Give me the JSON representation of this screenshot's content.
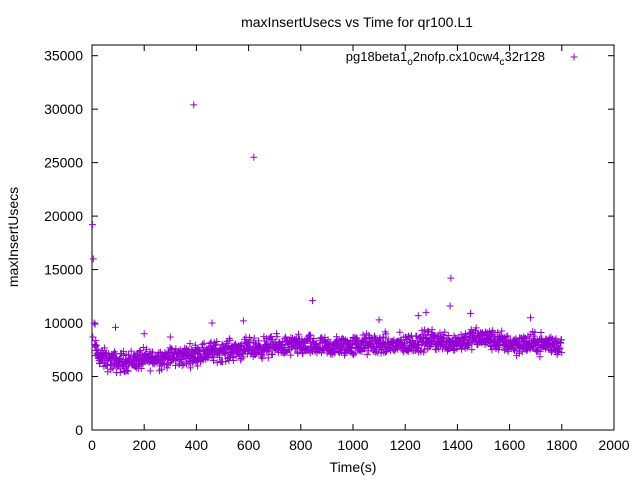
{
  "chart_data": {
    "type": "scatter",
    "title": "maxInsertUsecs vs Time for qr100.L1",
    "xlabel": "Time(s)",
    "ylabel": "maxInsertUsecs",
    "xlim": [
      0,
      2000
    ],
    "ylim": [
      0,
      36000
    ],
    "xticks": [
      0,
      200,
      400,
      600,
      800,
      1000,
      1200,
      1400,
      1600,
      1800,
      2000
    ],
    "yticks": [
      0,
      5000,
      10000,
      15000,
      20000,
      25000,
      30000,
      35000
    ],
    "grid": false,
    "legend_position": "top-right",
    "series": [
      {
        "legend_main": "pg18beta1",
        "legend_sub1": "o",
        "legend_mid": "2nofp.cx10cw4",
        "legend_sub2": "c",
        "legend_tail": "32r128",
        "marker": "plus",
        "color": "#9400d3",
        "points": [
          [
            2,
            19200
          ],
          [
            5,
            16000
          ],
          [
            8,
            10000
          ],
          [
            12,
            9900
          ],
          [
            3,
            8700
          ],
          [
            390,
            30400
          ],
          [
            620,
            25500
          ],
          [
            845,
            12100
          ],
          [
            1375,
            14200
          ],
          [
            1372,
            11600
          ],
          [
            1280,
            11000
          ],
          [
            1450,
            10900
          ],
          [
            1250,
            10700
          ],
          [
            1680,
            10500
          ],
          [
            1100,
            10300
          ],
          [
            580,
            10200
          ],
          [
            460,
            10000
          ],
          [
            90,
            9600
          ],
          [
            300,
            8700
          ],
          [
            200,
            9000
          ]
        ],
        "trend": [
          [
            10,
            7600
          ],
          [
            30,
            6800
          ],
          [
            60,
            6500
          ],
          [
            100,
            6300
          ],
          [
            150,
            6500
          ],
          [
            200,
            6600
          ],
          [
            250,
            6700
          ],
          [
            300,
            6800
          ],
          [
            350,
            6900
          ],
          [
            400,
            7100
          ],
          [
            450,
            7300
          ],
          [
            500,
            7400
          ],
          [
            550,
            7500
          ],
          [
            600,
            7600
          ],
          [
            650,
            7700
          ],
          [
            700,
            7800
          ],
          [
            750,
            7850
          ],
          [
            800,
            7900
          ],
          [
            850,
            7800
          ],
          [
            900,
            7700
          ],
          [
            950,
            7800
          ],
          [
            1000,
            7900
          ],
          [
            1050,
            8000
          ],
          [
            1100,
            8000
          ],
          [
            1150,
            7900
          ],
          [
            1200,
            8000
          ],
          [
            1250,
            8200
          ],
          [
            1300,
            8400
          ],
          [
            1350,
            8300
          ],
          [
            1400,
            8200
          ],
          [
            1450,
            8500
          ],
          [
            1500,
            8600
          ],
          [
            1550,
            8300
          ],
          [
            1600,
            8100
          ],
          [
            1650,
            8000
          ],
          [
            1700,
            8100
          ],
          [
            1750,
            8000
          ],
          [
            1800,
            7900
          ]
        ],
        "trend_spread": 1400,
        "trend_count": 1400
      }
    ]
  }
}
